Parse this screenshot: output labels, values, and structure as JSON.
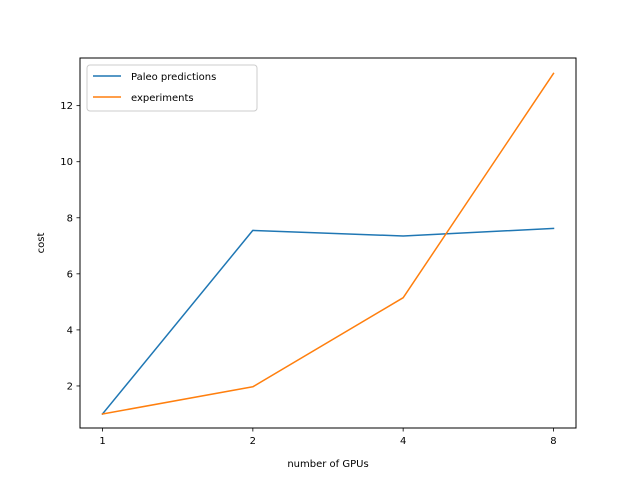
{
  "chart_data": {
    "type": "line",
    "x": [
      1,
      2,
      4,
      8
    ],
    "x_scale": "log2",
    "xlabel": "number of GPUs",
    "ylabel": "cost",
    "ylim": [
      0.5,
      13.7
    ],
    "yticks": [
      2,
      4,
      6,
      8,
      10,
      12
    ],
    "xticks": [
      "1",
      "2",
      "4",
      "8"
    ],
    "grid": false,
    "legend_position": "top-left",
    "series": [
      {
        "name": "Paleo predictions",
        "color": "#1f77b4",
        "values": [
          1.0,
          7.55,
          7.35,
          7.62
        ]
      },
      {
        "name": "experiments",
        "color": "#ff7f0e",
        "values": [
          1.0,
          1.97,
          5.15,
          13.15
        ]
      }
    ]
  }
}
